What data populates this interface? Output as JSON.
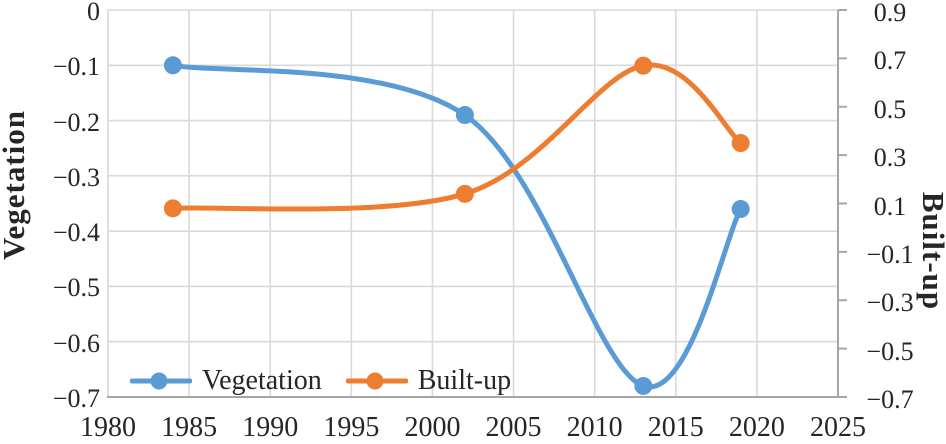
{
  "chart_data": {
    "type": "line",
    "smooth": true,
    "grid": true,
    "x_axis": {
      "min": 1980,
      "max": 2025,
      "ticks": [
        {
          "v": 1980,
          "label": "1980"
        },
        {
          "v": 1985,
          "label": "1985"
        },
        {
          "v": 1990,
          "label": "1990"
        },
        {
          "v": 1995,
          "label": "1995"
        },
        {
          "v": 2000,
          "label": "2000"
        },
        {
          "v": 2005,
          "label": "2005"
        },
        {
          "v": 2010,
          "label": "2010"
        },
        {
          "v": 2015,
          "label": "2015"
        },
        {
          "v": 2020,
          "label": "2020"
        },
        {
          "v": 2025,
          "label": "2025"
        }
      ]
    },
    "left_axis": {
      "title": "Vegetation",
      "min": -0.7,
      "max": 0,
      "ticks": [
        {
          "v": 0,
          "label": "0"
        },
        {
          "v": -0.1,
          "label": "−0.1"
        },
        {
          "v": -0.2,
          "label": "−0.2"
        },
        {
          "v": -0.3,
          "label": "−0.3"
        },
        {
          "v": -0.4,
          "label": "−0.4"
        },
        {
          "v": -0.5,
          "label": "−0.5"
        },
        {
          "v": -0.6,
          "label": "−0.6"
        },
        {
          "v": -0.7,
          "label": "−0.7"
        }
      ]
    },
    "right_axis": {
      "title": "Built-up",
      "min": -0.7,
      "max": 0.9,
      "ticks": [
        {
          "v": 0.9,
          "label": "0.9"
        },
        {
          "v": 0.7,
          "label": "0.7"
        },
        {
          "v": 0.5,
          "label": "0.5"
        },
        {
          "v": 0.3,
          "label": "0.3"
        },
        {
          "v": 0.1,
          "label": "0.1"
        },
        {
          "v": -0.1,
          "label": "−0.1"
        },
        {
          "v": -0.3,
          "label": "−0.3"
        },
        {
          "v": -0.5,
          "label": "−0.5"
        },
        {
          "v": -0.7,
          "label": "−0.7"
        }
      ]
    },
    "series": [
      {
        "name": "Vegetation",
        "axis": "left",
        "color": "#5B9BD5",
        "points": [
          {
            "x": 1984,
            "y": -0.1
          },
          {
            "x": 2002,
            "y": -0.19
          },
          {
            "x": 2013,
            "y": -0.68
          },
          {
            "x": 2019,
            "y": -0.36
          }
        ]
      },
      {
        "name": "Built-up",
        "axis": "right",
        "color": "#ED7D31",
        "points": [
          {
            "x": 1984,
            "y": 0.08
          },
          {
            "x": 2002,
            "y": 0.14
          },
          {
            "x": 2013,
            "y": 0.67
          },
          {
            "x": 2019,
            "y": 0.35
          }
        ]
      }
    ],
    "legend": {
      "position": "bottom-inside",
      "items": [
        "Vegetation",
        "Built-up"
      ]
    },
    "style": {
      "gridline_color": "#D9D9D9",
      "axis_line_color": "#A6A6A6",
      "text_color": "#262626",
      "background": "#FFFFFF"
    }
  }
}
